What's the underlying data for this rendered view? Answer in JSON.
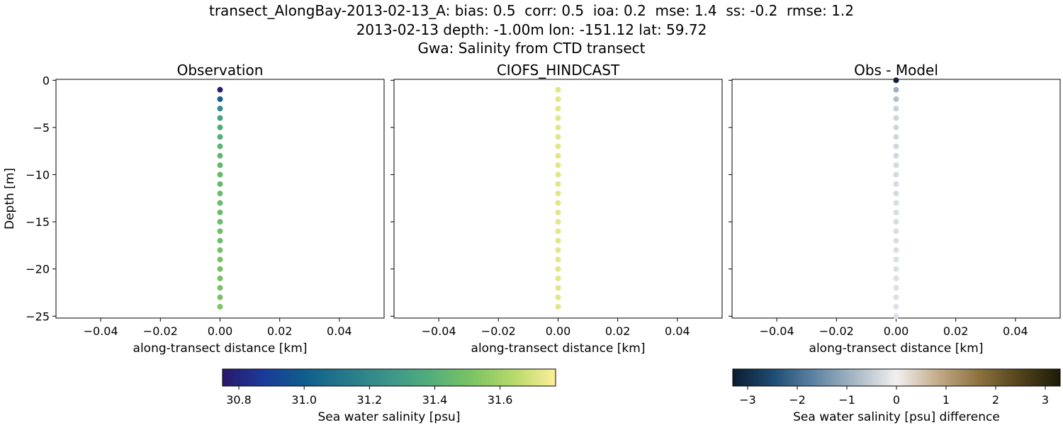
{
  "title_lines": [
    "transect_AlongBay-2013-02-13_A: bias: 0.5  corr: 0.5  ioa: 0.2  mse: 1.4  ss: -0.2  rmse: 1.2",
    "2013-02-13 depth: -1.00m lon: -151.12 lat: 59.72",
    "Gwa: Salinity from CTD transect"
  ],
  "chart_data": [
    {
      "type": "scatter",
      "title": "Observation",
      "xlabel": "along-transect distance [km]",
      "ylabel": "Depth [m]",
      "xlim": [
        -0.055,
        0.055
      ],
      "ylim": [
        -25.2,
        0.1
      ],
      "xticks": [
        "−0.04",
        "−0.02",
        "0.00",
        "0.02",
        "0.04"
      ],
      "xtick_values": [
        -0.04,
        -0.02,
        0.0,
        0.02,
        0.04
      ],
      "yticks": [
        "0",
        "−5",
        "−10",
        "−15",
        "−20",
        "−25"
      ],
      "ytick_values": [
        0,
        -5,
        -10,
        -15,
        -20,
        -25
      ],
      "grid": false,
      "x": [
        0,
        0,
        0,
        0,
        0,
        0,
        0,
        0,
        0,
        0,
        0,
        0,
        0,
        0,
        0,
        0,
        0,
        0,
        0,
        0,
        0,
        0,
        0,
        0
      ],
      "y": [
        -1,
        -2,
        -3,
        -4,
        -5,
        -6,
        -7,
        -8,
        -9,
        -10,
        -11,
        -12,
        -13,
        -14,
        -15,
        -16,
        -17,
        -18,
        -19,
        -20,
        -21,
        -22,
        -23,
        -24
      ],
      "values": [
        30.77,
        31.02,
        31.22,
        31.32,
        31.37,
        31.4,
        31.42,
        31.43,
        31.44,
        31.45,
        31.45,
        31.46,
        31.46,
        31.47,
        31.47,
        31.48,
        31.48,
        31.49,
        31.49,
        31.5,
        31.5,
        31.51,
        31.51,
        31.52
      ]
    },
    {
      "type": "scatter",
      "title": "CIOFS_HINDCAST",
      "xlabel": "along-transect distance [km]",
      "xlim": [
        -0.055,
        0.055
      ],
      "ylim": [
        -25.2,
        0.1
      ],
      "xticks": [
        "−0.04",
        "−0.02",
        "0.00",
        "0.02",
        "0.04"
      ],
      "xtick_values": [
        -0.04,
        -0.02,
        0.0,
        0.02,
        0.04
      ],
      "grid": false,
      "x": [
        0,
        0,
        0,
        0,
        0,
        0,
        0,
        0,
        0,
        0,
        0,
        0,
        0,
        0,
        0,
        0,
        0,
        0,
        0,
        0,
        0,
        0,
        0,
        0
      ],
      "y": [
        -1,
        -2,
        -3,
        -4,
        -5,
        -6,
        -7,
        -8,
        -9,
        -10,
        -11,
        -12,
        -13,
        -14,
        -15,
        -16,
        -17,
        -18,
        -19,
        -20,
        -21,
        -22,
        -23,
        -24
      ],
      "values": [
        31.72,
        31.72,
        31.72,
        31.72,
        31.72,
        31.72,
        31.72,
        31.72,
        31.72,
        31.72,
        31.72,
        31.72,
        31.72,
        31.72,
        31.72,
        31.72,
        31.72,
        31.72,
        31.72,
        31.72,
        31.72,
        31.72,
        31.72,
        31.72
      ]
    },
    {
      "type": "scatter",
      "title": "Obs - Model",
      "xlabel": "along-transect distance [km]",
      "xlim": [
        -0.055,
        0.055
      ],
      "ylim": [
        -25.2,
        0.1
      ],
      "xticks": [
        "−0.04",
        "−0.02",
        "0.00",
        "0.02",
        "0.04"
      ],
      "xtick_values": [
        -0.04,
        -0.02,
        0.0,
        0.02,
        0.04
      ],
      "grid": false,
      "x": [
        0,
        0,
        0,
        0,
        0,
        0,
        0,
        0,
        0,
        0,
        0,
        0,
        0,
        0,
        0,
        0,
        0,
        0,
        0,
        0,
        0,
        0,
        0,
        0,
        0,
        0
      ],
      "y": [
        0,
        -1,
        -2,
        -3,
        -4,
        -5,
        -6,
        -7,
        -8,
        -9,
        -10,
        -11,
        -12,
        -13,
        -14,
        -15,
        -16,
        -17,
        -18,
        -19,
        -20,
        -21,
        -22,
        -23,
        -24,
        -25
      ],
      "values": [
        -3.2,
        -0.95,
        -0.7,
        -0.45,
        -0.4,
        -0.4,
        -0.38,
        -0.36,
        -0.35,
        -0.34,
        -0.33,
        -0.32,
        -0.31,
        -0.3,
        -0.3,
        -0.29,
        -0.28,
        -0.27,
        -0.27,
        -0.26,
        -0.25,
        -0.24,
        -0.24,
        -0.23,
        -0.22,
        -0.21
      ]
    }
  ],
  "colorbars": [
    {
      "label": "Sea water salinity [psu]",
      "range": [
        30.75,
        31.77
      ],
      "ticks": [
        "30.8",
        "31.0",
        "31.2",
        "31.4",
        "31.6"
      ],
      "tick_values": [
        30.8,
        31.0,
        31.2,
        31.4,
        31.6
      ],
      "colormap": "haline",
      "colors": [
        "#2a186c",
        "#1a3b9a",
        "#0e5f8c",
        "#277a8a",
        "#3b958a",
        "#52ae7a",
        "#7cc463",
        "#b7d96a",
        "#fdef9a"
      ]
    },
    {
      "label": "Sea water salinity [psu] difference",
      "range": [
        -3.3,
        3.3
      ],
      "ticks": [
        "−3",
        "−2",
        "−1",
        "0",
        "1",
        "2",
        "3"
      ],
      "tick_values": [
        -3,
        -2,
        -1,
        0,
        1,
        2,
        3
      ],
      "colormap": "diff",
      "colors": [
        "#0b1c31",
        "#1f4d73",
        "#5e84a3",
        "#a9b9c6",
        "#f1f0ef",
        "#c5ac8a",
        "#8d7240",
        "#53431a",
        "#1c1b08"
      ]
    }
  ]
}
